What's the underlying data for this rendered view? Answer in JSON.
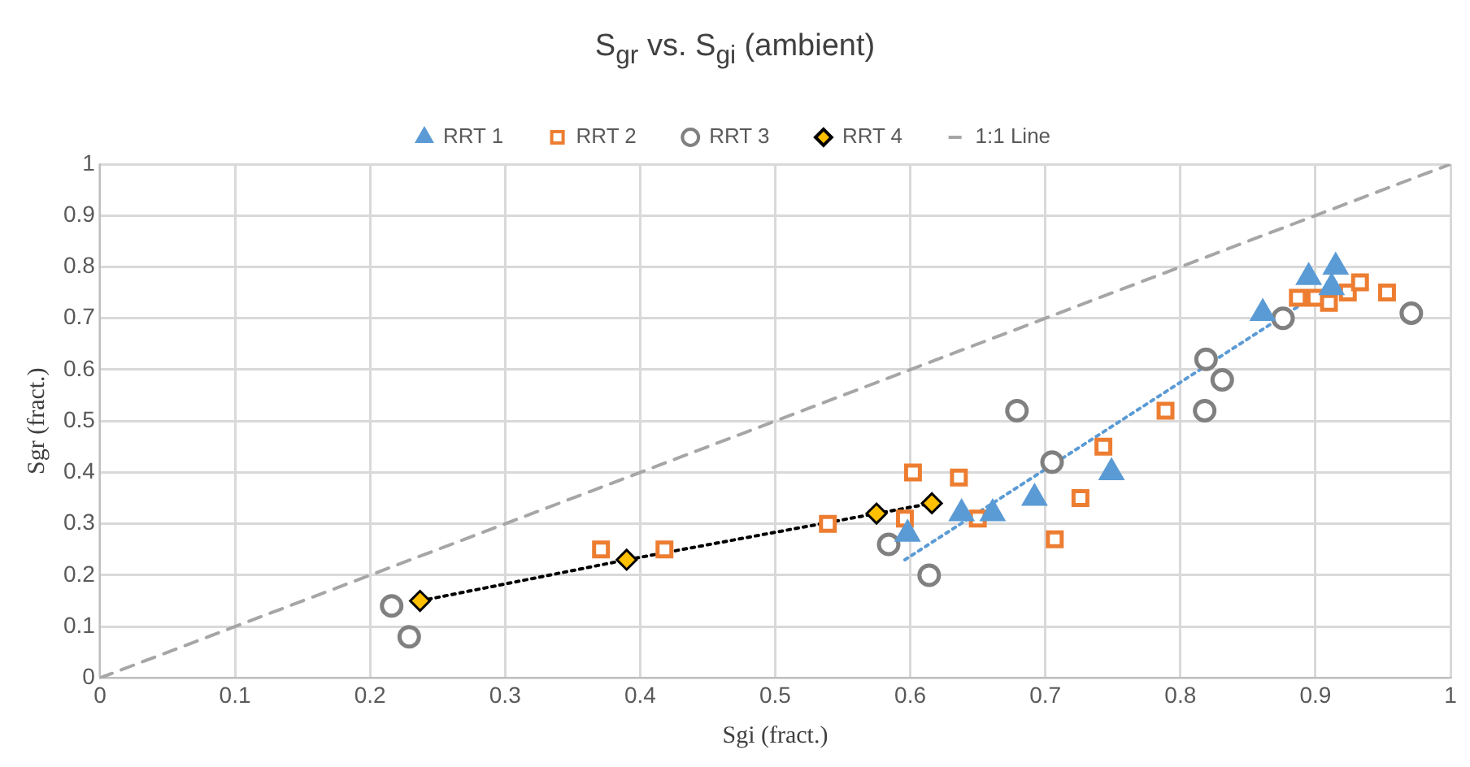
{
  "chart_data": {
    "type": "scatter",
    "title": "S$_{gr}$ vs. S$_{gi}$ (ambient)",
    "xlabel": "Sgi (fract.)",
    "ylabel": "Sgr (fract.)",
    "xlim": [
      0,
      1
    ],
    "xticks": [
      0,
      0.1,
      0.2,
      0.3,
      0.4,
      0.5,
      0.6,
      0.7,
      0.8,
      0.9,
      1
    ],
    "ylim": [
      0,
      1
    ],
    "yticks": [
      0,
      0.1,
      0.2,
      0.3,
      0.4,
      0.5,
      0.6,
      0.7,
      0.8,
      0.9,
      1
    ],
    "grid": true,
    "legend": "top",
    "series": [
      {
        "name": "RRT 1",
        "type": "scatter",
        "marker": "triangle",
        "color": "#5b9bd5",
        "x": [
          0.598,
          0.638,
          0.661,
          0.692,
          0.749,
          0.861,
          0.895,
          0.915,
          0.912
        ],
        "values": [
          0.28,
          0.32,
          0.32,
          0.35,
          0.4,
          0.71,
          0.78,
          0.8,
          0.76
        ]
      },
      {
        "name": "RRT 2",
        "type": "scatter",
        "marker": "square",
        "color": "#ed7d31",
        "x": [
          0.371,
          0.418,
          0.539,
          0.596,
          0.602,
          0.636,
          0.65,
          0.707,
          0.726,
          0.743,
          0.789,
          0.887,
          0.9,
          0.91,
          0.924,
          0.933,
          0.953
        ],
        "values": [
          0.25,
          0.25,
          0.3,
          0.31,
          0.4,
          0.39,
          0.31,
          0.27,
          0.35,
          0.45,
          0.52,
          0.74,
          0.74,
          0.73,
          0.75,
          0.77,
          0.75
        ]
      },
      {
        "name": "RRT 3",
        "type": "scatter",
        "marker": "circle",
        "color": "#808080",
        "x": [
          0.216,
          0.229,
          0.584,
          0.614,
          0.679,
          0.705,
          0.818,
          0.819,
          0.831,
          0.876,
          0.971
        ],
        "values": [
          0.14,
          0.08,
          0.26,
          0.2,
          0.52,
          0.42,
          0.52,
          0.62,
          0.58,
          0.7,
          0.71
        ]
      },
      {
        "name": "RRT 4",
        "type": "scatter",
        "marker": "diamond",
        "color": "#ffc000",
        "x": [
          0.237,
          0.39,
          0.575,
          0.616
        ],
        "values": [
          0.15,
          0.23,
          0.32,
          0.34
        ]
      },
      {
        "name": "1:1 Line",
        "type": "line",
        "marker": "none",
        "line_style": "dashed",
        "color": "#a6a6a6",
        "x": [
          0,
          1
        ],
        "values": [
          0,
          1
        ]
      },
      {
        "type": "line",
        "marker": "none",
        "line_style": "dotted",
        "color": "#000000",
        "x": [
          0.237,
          0.39,
          0.575,
          0.616
        ],
        "values": [
          0.15,
          0.23,
          0.32,
          0.34
        ]
      },
      {
        "type": "line",
        "marker": "none",
        "line_style": "dotted",
        "color": "#5b9bd5",
        "x": [
          0.596,
          0.915
        ],
        "values": [
          0.23,
          0.77
        ]
      }
    ]
  }
}
